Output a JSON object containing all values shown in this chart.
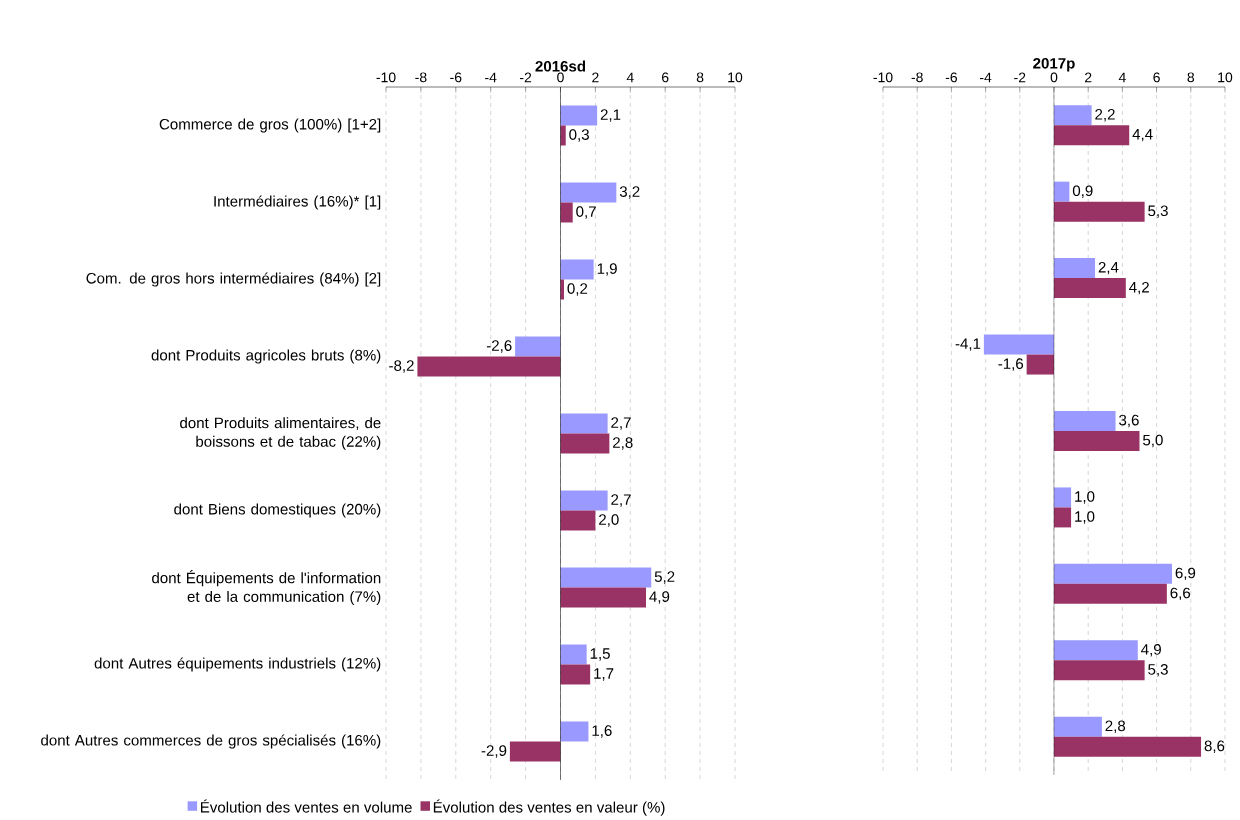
{
  "chart_data": [
    {
      "type": "bar",
      "orientation": "horizontal",
      "title": "2016sd",
      "categories": [
        "Commerce de gros (100%) [1+2]",
        "Intermédiaires (16%)* [1]",
        "Com. de gros hors intermédiaires (84%) [2]",
        "dont Produits agricoles bruts (8%)",
        "dont Produits alimentaires, de boissons et de tabac (22%)",
        "dont Biens domestiques (20%)",
        "dont Équipements de l'information et de la communication (7%)",
        "dont Autres équipements industriels (12%)",
        "dont Autres commerces de gros spécialisés (16%)"
      ],
      "series": [
        {
          "name": "Évolution des ventes en volume",
          "color": "#9999ff",
          "values": [
            2.1,
            3.2,
            1.9,
            -2.6,
            2.7,
            2.7,
            5.2,
            1.5,
            1.6
          ],
          "value_labels": [
            "2,1",
            "3,2",
            "1,9",
            "-2,6",
            "2,7",
            "2,7",
            "5,2",
            "1,5",
            "1,6"
          ]
        },
        {
          "name": "Évolution des ventes en valeur (%)",
          "color": "#993366",
          "values": [
            0.3,
            0.7,
            0.2,
            -8.2,
            2.8,
            2.0,
            4.9,
            1.7,
            -2.9
          ],
          "value_labels": [
            "0,3",
            "0,7",
            "0,2",
            "-8,2",
            "2,8",
            "2,0",
            "4,9",
            "1,7",
            "-2,9"
          ]
        }
      ],
      "xlim": [
        -10,
        10
      ],
      "xticks": [
        -10,
        -8,
        -6,
        -4,
        -2,
        0,
        2,
        4,
        6,
        8,
        10
      ],
      "grid": "x",
      "legend": "bottom"
    },
    {
      "type": "bar",
      "orientation": "horizontal",
      "title": "2017p",
      "categories": [
        null,
        null,
        null,
        null,
        null,
        null,
        null,
        null,
        null
      ],
      "series": [
        {
          "color": "#9999ff",
          "values": [
            2.2,
            0.9,
            2.4,
            -4.1,
            3.6,
            1.0,
            6.9,
            4.9,
            2.8
          ],
          "value_labels": [
            "2,2",
            "0,9",
            "2,4",
            "-4,1",
            "3,6",
            "1,0",
            "6,9",
            "4,9",
            "2,8"
          ]
        },
        {
          "color": "#993366",
          "values": [
            4.4,
            5.3,
            4.2,
            -1.6,
            5.0,
            1.0,
            6.6,
            5.3,
            8.6
          ],
          "value_labels": [
            "4,4",
            "5,3",
            "4,2",
            "-1,6",
            "5,0",
            "1,0",
            "6,6",
            "5,3",
            "8,6"
          ]
        }
      ],
      "xlim": [
        -10,
        10
      ],
      "xticks": [
        -10,
        -8,
        -6,
        -4,
        -2,
        0,
        2,
        4,
        6,
        8,
        10
      ],
      "grid": "x",
      "tick_labels": "x"
    }
  ]
}
